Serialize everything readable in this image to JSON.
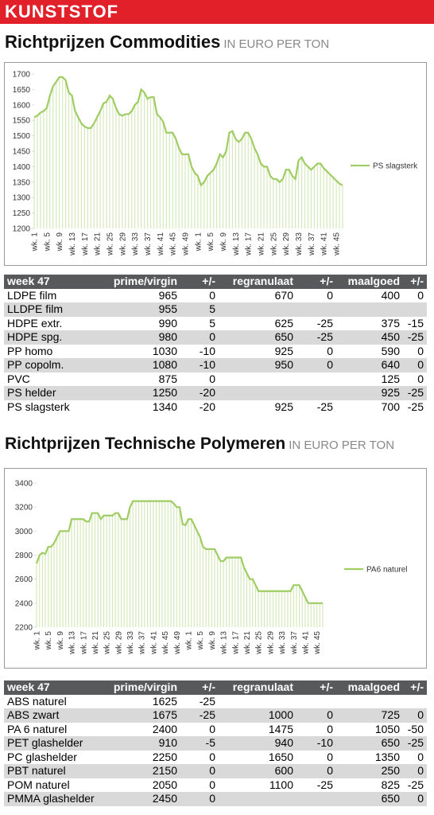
{
  "header": {
    "title": "KUNSTSTOF"
  },
  "sections": [
    {
      "title": "Richtprijzen Commodities",
      "unit": "IN EURO PER TON",
      "table": {
        "header": [
          "week 47",
          "prime/virgin",
          "+/-",
          "regranulaat",
          "+/-",
          "maalgoed",
          "+/-"
        ],
        "rows": [
          [
            "LDPE film",
            965,
            0,
            670,
            0,
            400,
            0
          ],
          [
            "LLDPE film",
            955,
            5,
            null,
            null,
            null,
            null
          ],
          [
            "HDPE extr.",
            990,
            5,
            625,
            -25,
            375,
            -15
          ],
          [
            "HDPE spg.",
            980,
            0,
            650,
            -25,
            450,
            -25
          ],
          [
            "PP homo",
            1030,
            -10,
            925,
            0,
            590,
            0
          ],
          [
            "PP copolm.",
            1080,
            -10,
            950,
            0,
            640,
            0
          ],
          [
            "PVC",
            875,
            0,
            null,
            null,
            125,
            0
          ],
          [
            "PS helder",
            1250,
            -20,
            null,
            null,
            925,
            -25
          ],
          [
            "PS slagsterk",
            1340,
            -20,
            925,
            -25,
            700,
            -25
          ]
        ]
      }
    },
    {
      "title": "Richtprijzen Technische Polymeren",
      "unit": "IN EURO PER TON",
      "table": {
        "header": [
          "week 47",
          "prime/virgin",
          "+/-",
          "regranulaat",
          "+/-",
          "maalgoed",
          "+/-"
        ],
        "rows": [
          [
            "ABS naturel",
            1625,
            -25,
            null,
            null,
            null,
            null
          ],
          [
            "ABS zwart",
            1675,
            -25,
            1000,
            0,
            725,
            0
          ],
          [
            "PA 6 naturel",
            2400,
            0,
            1475,
            0,
            1050,
            -50
          ],
          [
            "PET glashelder",
            910,
            -5,
            940,
            -10,
            650,
            -25
          ],
          [
            "PC glashelder",
            2250,
            0,
            1650,
            0,
            1350,
            0
          ],
          [
            "PBT naturel",
            2150,
            0,
            600,
            0,
            250,
            0
          ],
          [
            "POM naturel",
            2050,
            0,
            1100,
            -25,
            825,
            -25
          ],
          [
            "PMMA glashelder",
            2450,
            0,
            null,
            null,
            650,
            0
          ]
        ]
      }
    }
  ],
  "chart_data": [
    {
      "type": "line",
      "legend": "right",
      "categories": [
        "wk. 1",
        null,
        null,
        null,
        "wk. 5",
        null,
        null,
        null,
        "wk. 9",
        null,
        null,
        null,
        "wk. 13",
        null,
        null,
        null,
        "wk. 17",
        null,
        null,
        null,
        "wk. 21",
        null,
        null,
        null,
        "wk. 25",
        null,
        null,
        null,
        "wk. 29",
        null,
        null,
        null,
        "wk. 33",
        null,
        null,
        null,
        "wk. 37",
        null,
        null,
        null,
        "wk. 41",
        null,
        null,
        null,
        "wk. 45",
        null,
        null,
        null,
        "wk. 49",
        null,
        null,
        null,
        "wk. 1",
        null,
        null,
        null,
        "wk. 5",
        null,
        null,
        null,
        "wk. 9",
        null,
        null,
        null,
        "wk. 13",
        null,
        null,
        null,
        "wk. 17",
        null,
        null,
        null,
        "wk. 21",
        null,
        null,
        null,
        "wk. 25",
        null,
        null,
        null,
        "wk. 29",
        null,
        null,
        null,
        "wk. 33",
        null,
        null,
        null,
        "wk. 37",
        null,
        null,
        null,
        "wk. 41",
        null,
        null,
        null,
        "wk. 45",
        null,
        null
      ],
      "series": [
        {
          "name": "PS slagsterk",
          "color": "#9fcd63",
          "values": [
            1560,
            1565,
            1575,
            1580,
            1590,
            1630,
            1660,
            1675,
            1690,
            1690,
            1680,
            1640,
            1630,
            1580,
            1560,
            1540,
            1530,
            1525,
            1525,
            1540,
            1560,
            1580,
            1605,
            1610,
            1630,
            1620,
            1590,
            1570,
            1565,
            1570,
            1570,
            1580,
            1600,
            1610,
            1650,
            1640,
            1620,
            1625,
            1625,
            1570,
            1560,
            1545,
            1510,
            1510,
            1510,
            1490,
            1460,
            1440,
            1440,
            1440,
            1400,
            1380,
            1370,
            1340,
            1350,
            1370,
            1380,
            1390,
            1410,
            1440,
            1430,
            1450,
            1510,
            1515,
            1490,
            1480,
            1490,
            1510,
            1510,
            1490,
            1460,
            1440,
            1410,
            1400,
            1400,
            1370,
            1360,
            1360,
            1350,
            1360,
            1390,
            1390,
            1370,
            1360,
            1420,
            1430,
            1410,
            1400,
            1390,
            1400,
            1410,
            1410,
            1395,
            1385,
            1375,
            1365,
            1355,
            1345,
            1340
          ]
        }
      ],
      "ylim": [
        1200,
        1700
      ],
      "yticks": [
        1200,
        1250,
        1300,
        1350,
        1400,
        1450,
        1500,
        1550,
        1600,
        1650,
        1700
      ]
    },
    {
      "type": "line",
      "legend": "right",
      "categories": [
        "wk. 1",
        null,
        null,
        null,
        "wk. 5",
        null,
        null,
        null,
        "wk. 9",
        null,
        null,
        null,
        "wk. 13",
        null,
        null,
        null,
        "wk. 17",
        null,
        null,
        null,
        "wk. 21",
        null,
        null,
        null,
        "wk. 25",
        null,
        null,
        null,
        "wk. 29",
        null,
        null,
        null,
        "wk. 33",
        null,
        null,
        null,
        "wk. 37",
        null,
        null,
        null,
        "wk. 41",
        null,
        null,
        null,
        "wk. 45",
        null,
        null,
        null,
        "wk. 49",
        null,
        null,
        null,
        "wk. 1",
        null,
        null,
        null,
        "wk. 5",
        null,
        null,
        null,
        "wk. 9",
        null,
        null,
        null,
        "wk. 13",
        null,
        null,
        null,
        "wk. 17",
        null,
        null,
        null,
        "wk. 21",
        null,
        null,
        null,
        "wk. 25",
        null,
        null,
        null,
        "wk. 29",
        null,
        null,
        null,
        "wk. 33",
        null,
        null,
        null,
        "wk. 37",
        null,
        null,
        null,
        "wk. 41",
        null,
        null,
        null,
        "wk. 45",
        null,
        null
      ],
      "series": [
        {
          "name": "PA6 naturel",
          "color": "#9fcd63",
          "values": [
            2730,
            2800,
            2820,
            2810,
            2870,
            2870,
            2900,
            2950,
            3000,
            3000,
            3000,
            3000,
            3100,
            3100,
            3100,
            3100,
            3100,
            3080,
            3080,
            3150,
            3150,
            3150,
            3100,
            3130,
            3130,
            3130,
            3130,
            3150,
            3150,
            3100,
            3100,
            3100,
            3200,
            3250,
            3250,
            3250,
            3250,
            3250,
            3250,
            3250,
            3250,
            3250,
            3250,
            3250,
            3250,
            3250,
            3250,
            3230,
            3200,
            3200,
            3060,
            3050,
            3100,
            3100,
            3050,
            3000,
            2950,
            2870,
            2850,
            2850,
            2850,
            2850,
            2800,
            2750,
            2750,
            2780,
            2780,
            2780,
            2780,
            2780,
            2780,
            2700,
            2650,
            2600,
            2600,
            2550,
            2500,
            2500,
            2500,
            2500,
            2500,
            2500,
            2500,
            2500,
            2500,
            2500,
            2500,
            2500,
            2550,
            2550,
            2550,
            2500,
            2450,
            2400,
            2400,
            2400,
            2400,
            2400,
            2400
          ]
        }
      ],
      "ylim": [
        2200,
        3400
      ],
      "yticks": [
        2200,
        2400,
        2600,
        2800,
        3000,
        3200,
        3400
      ]
    }
  ]
}
